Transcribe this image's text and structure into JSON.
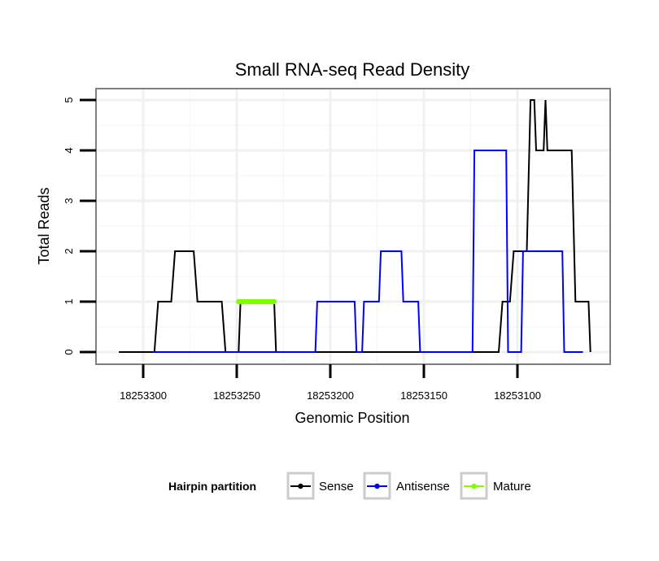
{
  "chart_data": {
    "type": "line",
    "title": "Small RNA-seq Read Density",
    "xlabel": "Genomic Position",
    "ylabel": "Total Reads",
    "xlim": [
      18253326,
      18253056
    ],
    "ylim": [
      -0.25,
      5.25
    ],
    "x_reversed": true,
    "grid": true,
    "xticks": [
      18253300,
      18253250,
      18253200,
      18253150,
      18253100
    ],
    "xtick_labels": [
      "18253300",
      "18253250",
      "18253200",
      "18253150",
      "18253100"
    ],
    "yticks": [
      0,
      1,
      2,
      3,
      4,
      5
    ],
    "ytick_labels": [
      "0",
      "1",
      "2",
      "3",
      "4",
      "5"
    ],
    "legend": {
      "title": "Hairpin partition",
      "position": "bottom",
      "entries": [
        "Sense",
        "Antisense",
        "Mature"
      ]
    },
    "series": [
      {
        "name": "Sense",
        "color": "#000000",
        "points": [
          [
            18253313,
            0
          ],
          [
            18253294,
            0
          ],
          [
            18253292,
            1
          ],
          [
            18253285,
            1
          ],
          [
            18253283,
            2
          ],
          [
            18253273,
            2
          ],
          [
            18253271,
            1
          ],
          [
            18253258,
            1
          ],
          [
            18253256,
            0
          ],
          [
            18253249,
            0
          ],
          [
            18253248,
            1
          ],
          [
            18253230,
            1
          ],
          [
            18253229,
            0
          ],
          [
            18253120,
            0
          ],
          [
            18253110,
            0
          ],
          [
            18253108,
            1
          ],
          [
            18253104,
            1
          ],
          [
            18253102,
            2
          ],
          [
            18253095,
            2
          ],
          [
            18253093,
            5
          ],
          [
            18253091,
            5
          ],
          [
            18253090,
            4
          ],
          [
            18253086,
            4
          ],
          [
            18253085,
            5
          ],
          [
            18253084,
            4
          ],
          [
            18253071,
            4
          ],
          [
            18253069,
            1
          ],
          [
            18253062,
            1
          ],
          [
            18253061,
            0
          ]
        ]
      },
      {
        "name": "Antisense",
        "color": "#0000ff",
        "points": [
          [
            18253295,
            0
          ],
          [
            18253208,
            0
          ],
          [
            18253207,
            1
          ],
          [
            18253187,
            1
          ],
          [
            18253186,
            0
          ],
          [
            18253183,
            0
          ],
          [
            18253182,
            1
          ],
          [
            18253174,
            1
          ],
          [
            18253173,
            2
          ],
          [
            18253162,
            2
          ],
          [
            18253161,
            1
          ],
          [
            18253153,
            1
          ],
          [
            18253152,
            0
          ],
          [
            18253124,
            0
          ],
          [
            18253123,
            4
          ],
          [
            18253106,
            4
          ],
          [
            18253105,
            0
          ],
          [
            18253098,
            0
          ],
          [
            18253097,
            2
          ],
          [
            18253076,
            2
          ],
          [
            18253075,
            0
          ],
          [
            18253065,
            0
          ]
        ]
      },
      {
        "name": "Mature",
        "color": "#7fff00",
        "marker": true,
        "points": [
          [
            18253249,
            1
          ],
          [
            18253248,
            1
          ],
          [
            18253247,
            1
          ],
          [
            18253246,
            1
          ],
          [
            18253245,
            1
          ],
          [
            18253244,
            1
          ],
          [
            18253243,
            1
          ],
          [
            18253242,
            1
          ],
          [
            18253241,
            1
          ],
          [
            18253240,
            1
          ],
          [
            18253239,
            1
          ],
          [
            18253238,
            1
          ],
          [
            18253237,
            1
          ],
          [
            18253236,
            1
          ],
          [
            18253235,
            1
          ],
          [
            18253234,
            1
          ],
          [
            18253233,
            1
          ],
          [
            18253232,
            1
          ],
          [
            18253231,
            1
          ],
          [
            18253230,
            1
          ]
        ]
      }
    ]
  }
}
